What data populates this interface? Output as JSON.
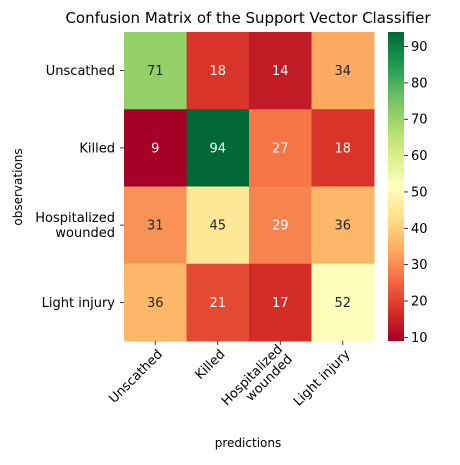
{
  "chart_data": {
    "type": "heatmap",
    "title": "Confusion Matrix of the Support Vector Classifier",
    "xlabel": "predictions",
    "ylabel": "observations",
    "row_labels": [
      [
        "Unscathed"
      ],
      [
        "Killed"
      ],
      [
        "Hospitalized",
        "wounded"
      ],
      [
        "Light injury"
      ]
    ],
    "col_labels": [
      [
        "Unscathed"
      ],
      [
        "Killed"
      ],
      [
        "Hospitalized",
        "wounded"
      ],
      [
        "Light injury"
      ]
    ],
    "values": [
      [
        71,
        18,
        14,
        34
      ],
      [
        9,
        94,
        27,
        18
      ],
      [
        31,
        45,
        29,
        36
      ],
      [
        36,
        21,
        17,
        52
      ]
    ],
    "colormap": "RdYlGn",
    "color_range": [
      9,
      94
    ],
    "colorbar_ticks": [
      10,
      20,
      30,
      40,
      50,
      60,
      70,
      80,
      90
    ],
    "colors": {
      "colormap_stops": [
        "#a50026",
        "#d73027",
        "#f46d43",
        "#fdae61",
        "#fee08b",
        "#ffffbf",
        "#d9ef8b",
        "#a6d96a",
        "#66bd63",
        "#1a9850",
        "#006837"
      ],
      "text_dark": "#262626",
      "text_light": "#ffffff",
      "axis": "#000000"
    }
  }
}
